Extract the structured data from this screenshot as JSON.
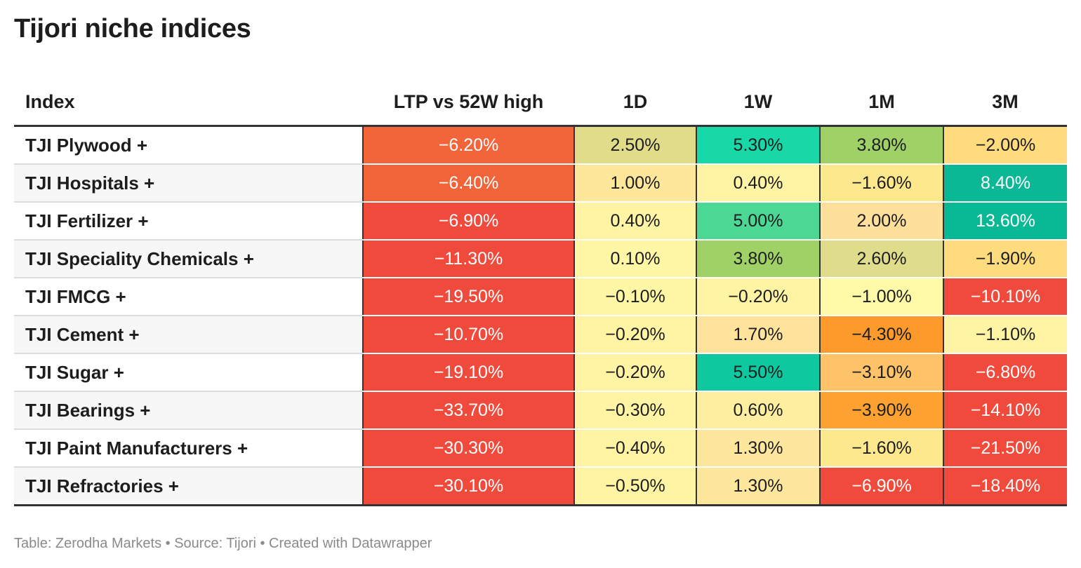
{
  "title": "Tijori niche indices",
  "footer": "Table: Zerodha Markets • Source: Tijori • Created with Datawrapper",
  "chart_data": {
    "type": "table",
    "columns": [
      "Index",
      "LTP vs 52W high",
      "1D",
      "1W",
      "1M",
      "3M"
    ],
    "rows": [
      {
        "name": "TJI Plywood +",
        "values": [
          "−6.20%",
          "2.50%",
          "5.30%",
          "3.80%",
          "−2.00%"
        ],
        "colors": [
          "#f2653b",
          "#e0dc8a",
          "#17d8a6",
          "#9fd167",
          "#fedb7d"
        ],
        "white": [
          true,
          false,
          false,
          false,
          false
        ]
      },
      {
        "name": "TJI Hospitals +",
        "values": [
          "−6.40%",
          "1.00%",
          "0.40%",
          "−1.60%",
          "8.40%"
        ],
        "colors": [
          "#f1643a",
          "#fee79a",
          "#fff4a3",
          "#fde88d",
          "#0ab896"
        ],
        "white": [
          true,
          false,
          false,
          false,
          true
        ]
      },
      {
        "name": "TJI Fertilizer +",
        "values": [
          "−6.90%",
          "0.40%",
          "5.00%",
          "2.00%",
          "13.60%"
        ],
        "colors": [
          "#ef4a3b",
          "#fff4a3",
          "#4bd895",
          "#fedf9b",
          "#09b895"
        ],
        "white": [
          true,
          false,
          false,
          false,
          true
        ]
      },
      {
        "name": "TJI Speciality Chemicals +",
        "values": [
          "−11.30%",
          "0.10%",
          "3.80%",
          "2.60%",
          "−1.90%"
        ],
        "colors": [
          "#ef4a3b",
          "#fff6a6",
          "#9fd167",
          "#dfdc8b",
          "#fedb7d"
        ],
        "white": [
          true,
          false,
          false,
          false,
          false
        ]
      },
      {
        "name": "TJI FMCG +",
        "values": [
          "−19.50%",
          "−0.10%",
          "−0.20%",
          "−1.00%",
          "−10.10%"
        ],
        "colors": [
          "#ef4a3b",
          "#fff6a6",
          "#fff4a3",
          "#fffaa8",
          "#ef4a3b"
        ],
        "white": [
          true,
          false,
          false,
          false,
          true
        ]
      },
      {
        "name": "TJI Cement +",
        "values": [
          "−10.70%",
          "−0.20%",
          "1.70%",
          "−4.30%",
          "−1.10%"
        ],
        "colors": [
          "#ef4a3b",
          "#fff4a3",
          "#fee39c",
          "#fd9a2c",
          "#fff4a3"
        ],
        "white": [
          true,
          false,
          false,
          false,
          false
        ]
      },
      {
        "name": "TJI Sugar +",
        "values": [
          "−19.10%",
          "−0.20%",
          "5.50%",
          "−3.10%",
          "−6.80%"
        ],
        "colors": [
          "#ef4a3b",
          "#fff4a3",
          "#0ec99f",
          "#fec269",
          "#ef4a3b"
        ],
        "white": [
          true,
          false,
          false,
          false,
          true
        ]
      },
      {
        "name": "TJI Bearings +",
        "values": [
          "−33.70%",
          "−0.30%",
          "0.60%",
          "−3.90%",
          "−14.10%"
        ],
        "colors": [
          "#ef4a3b",
          "#fff4a3",
          "#feeea0",
          "#fda230",
          "#ef4a3b"
        ],
        "white": [
          true,
          false,
          false,
          false,
          true
        ]
      },
      {
        "name": "TJI Paint Manufacturers +",
        "values": [
          "−30.30%",
          "−0.40%",
          "1.30%",
          "−1.60%",
          "−21.50%"
        ],
        "colors": [
          "#ef4a3b",
          "#fff4a3",
          "#fee79d",
          "#fde88d",
          "#ef4a3b"
        ],
        "white": [
          true,
          false,
          false,
          false,
          true
        ]
      },
      {
        "name": "TJI Refractories +",
        "values": [
          "−30.10%",
          "−0.50%",
          "1.30%",
          "−6.90%",
          "−18.40%"
        ],
        "colors": [
          "#ef4a3b",
          "#fff4a3",
          "#fee79d",
          "#ef4a3b",
          "#ef4a3b"
        ],
        "white": [
          true,
          false,
          false,
          true,
          true
        ]
      }
    ]
  }
}
